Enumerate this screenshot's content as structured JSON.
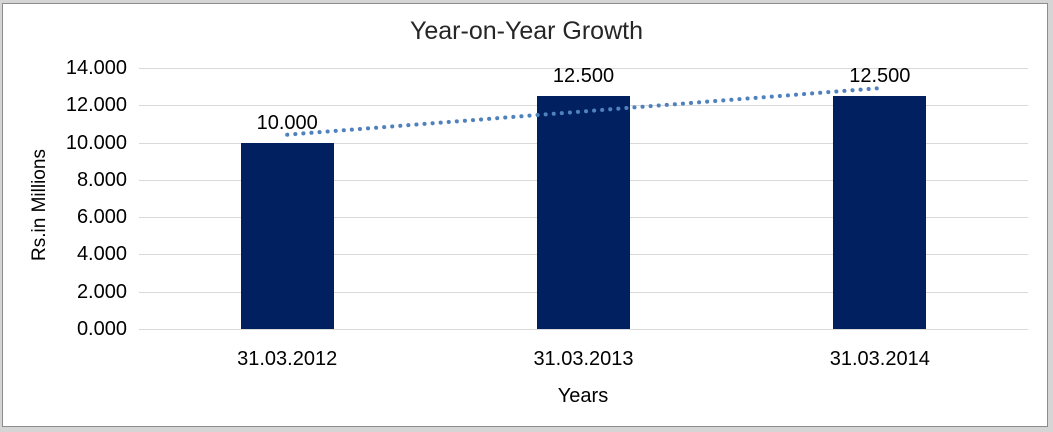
{
  "chart_data": {
    "type": "bar",
    "title": "Year-on-Year Growth",
    "xlabel": "Years",
    "ylabel": "Rs.in Millions",
    "categories": [
      "31.03.2012",
      "31.03.2013",
      "31.03.2014"
    ],
    "values": [
      10.0,
      12.5,
      12.5
    ],
    "value_labels": [
      "10.000",
      "12.500",
      "12.500"
    ],
    "ylim": [
      0,
      14
    ],
    "ytick_step": 2,
    "ytick_labels": [
      "0.000",
      "2.000",
      "4.000",
      "6.000",
      "8.000",
      "10.000",
      "12.000",
      "14.000"
    ],
    "grid": true,
    "legend": "none",
    "bar_color": "#002060",
    "gridline_color": "#d9d9d9",
    "trendline": {
      "type": "linear",
      "style": "dotted",
      "color": "#4f81bd",
      "values": [
        10.42,
        11.67,
        12.92
      ]
    }
  }
}
